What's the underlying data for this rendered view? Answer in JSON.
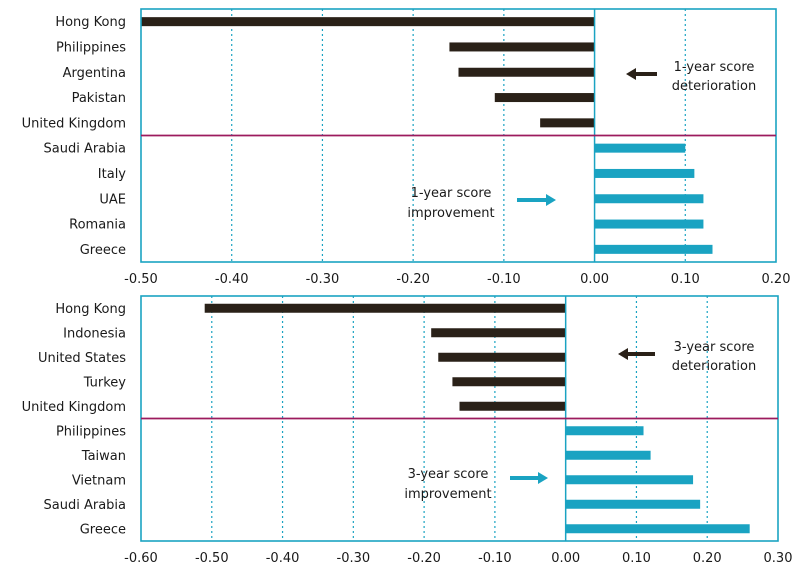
{
  "colors": {
    "negative": "#2a2118",
    "positive": "#1aa3c2",
    "frame": "#1aa3c2",
    "grid": "#1aa3c2",
    "separator": "#9c1b5e",
    "text": "#1a1a1a"
  },
  "chart_data": [
    {
      "type": "bar",
      "orientation": "horizontal",
      "categories": [
        "Hong Kong",
        "Philippines",
        "Argentina",
        "Pakistan",
        "United Kingdom",
        "Saudi Arabia",
        "Italy",
        "UAE",
        "Romania",
        "Greece"
      ],
      "values": [
        -0.5,
        -0.16,
        -0.15,
        -0.11,
        -0.06,
        0.1,
        0.11,
        0.12,
        0.12,
        0.13
      ],
      "xlim": [
        -0.5,
        0.2
      ],
      "ticks": [
        -0.5,
        -0.4,
        -0.3,
        -0.2,
        -0.1,
        0.0,
        0.1,
        0.2
      ],
      "tick_labels": [
        "-0.50",
        "-0.40",
        "-0.30",
        "-0.20",
        "-0.10",
        "0.00",
        "0.10",
        "0.20"
      ],
      "separator_after_index": 4,
      "grid": "vertical-dotted",
      "annotations": {
        "deterioration": {
          "lines": [
            "1-year score",
            "deterioration"
          ],
          "arrow": "left"
        },
        "improvement": {
          "lines": [
            "1-year score",
            "improvement"
          ],
          "arrow": "right"
        }
      }
    },
    {
      "type": "bar",
      "orientation": "horizontal",
      "categories": [
        "Hong Kong",
        "Indonesia",
        "United States",
        "Turkey",
        "United Kingdom",
        "Philippines",
        "Taiwan",
        "Vietnam",
        "Saudi Arabia",
        "Greece"
      ],
      "values": [
        -0.51,
        -0.19,
        -0.18,
        -0.16,
        -0.15,
        0.11,
        0.12,
        0.18,
        0.19,
        0.26
      ],
      "xlim": [
        -0.6,
        0.3
      ],
      "ticks": [
        -0.6,
        -0.5,
        -0.4,
        -0.3,
        -0.2,
        -0.1,
        0.0,
        0.1,
        0.2,
        0.3
      ],
      "tick_labels": [
        "-0.60",
        "-0.50",
        "-0.40",
        "-0.30",
        "-0.20",
        "-0.10",
        "0.00",
        "0.10",
        "0.20",
        "0.30"
      ],
      "separator_after_index": 4,
      "grid": "vertical-dotted",
      "annotations": {
        "deterioration": {
          "lines": [
            "3-year score",
            "deterioration"
          ],
          "arrow": "left"
        },
        "improvement": {
          "lines": [
            "3-year score",
            "improvement"
          ],
          "arrow": "right"
        }
      }
    }
  ]
}
